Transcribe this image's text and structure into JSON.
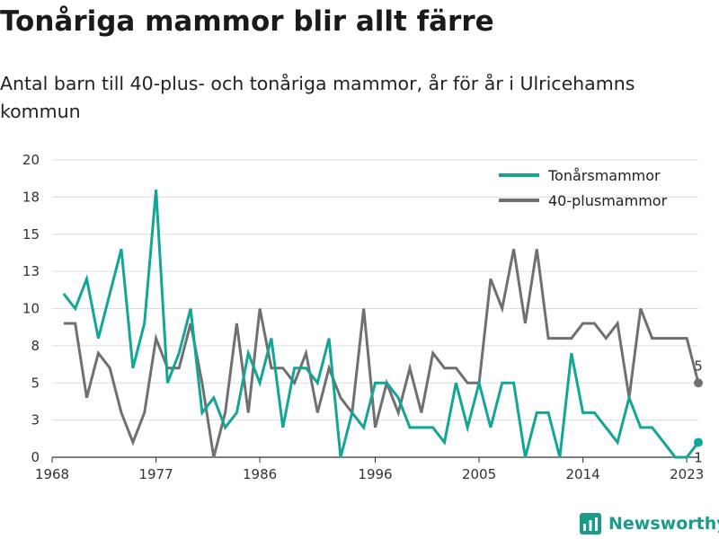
{
  "title": "Tonåriga mammor blir allt färre",
  "subtitle": "Antal barn till 40-plus- och tonåriga mammor, år för år i Ulricehamns kommun",
  "brand": "Newsworthy",
  "colors": {
    "teal": "#13a596",
    "gray": "#707070",
    "grid": "#dddddd",
    "axis": "#333333"
  },
  "chart_data": {
    "type": "line",
    "xlim": [
      1968,
      2024
    ],
    "ylim": [
      0,
      20
    ],
    "x_ticks": [
      1968,
      1977,
      1986,
      1996,
      2005,
      2014,
      2023
    ],
    "y_ticks": [
      0,
      3,
      5,
      8,
      10,
      13,
      15,
      18,
      20
    ],
    "y_tick_values": [
      0,
      2.5,
      5,
      7.5,
      10,
      12.5,
      15,
      17.5,
      20
    ],
    "legend_position": "top-right",
    "grid": true,
    "x": [
      1969,
      1970,
      1971,
      1972,
      1973,
      1974,
      1975,
      1976,
      1977,
      1978,
      1979,
      1980,
      1981,
      1982,
      1983,
      1984,
      1985,
      1986,
      1987,
      1988,
      1989,
      1990,
      1991,
      1992,
      1993,
      1994,
      1995,
      1996,
      1997,
      1998,
      1999,
      2000,
      2001,
      2002,
      2003,
      2004,
      2005,
      2006,
      2007,
      2008,
      2009,
      2010,
      2011,
      2012,
      2013,
      2014,
      2015,
      2016,
      2017,
      2018,
      2019,
      2020,
      2021,
      2022,
      2023,
      2024
    ],
    "series": [
      {
        "name": "Tonårsmammor",
        "color": "#13a596",
        "values": [
          11,
          10,
          12,
          8,
          11,
          14,
          6,
          9,
          18,
          5,
          7,
          10,
          3,
          4,
          2,
          3,
          7,
          5,
          8,
          2,
          6,
          6,
          5,
          8,
          0,
          3,
          2,
          5,
          5,
          4,
          2,
          2,
          2,
          1,
          5,
          2,
          5,
          2,
          5,
          5,
          0,
          3,
          3,
          0,
          7,
          3,
          3,
          2,
          1,
          4,
          2,
          2,
          1,
          0,
          0,
          1
        ],
        "end_label": "1"
      },
      {
        "name": "40-plusmammor",
        "color": "#707070",
        "values": [
          9,
          9,
          4,
          7,
          6,
          3,
          1,
          3,
          8,
          6,
          6,
          9,
          5,
          0,
          3,
          9,
          3,
          10,
          6,
          6,
          5,
          7,
          3,
          6,
          4,
          3,
          10,
          2,
          5,
          3,
          6,
          3,
          7,
          6,
          6,
          5,
          5,
          12,
          10,
          14,
          9,
          14,
          8,
          8,
          8,
          9,
          9,
          8,
          9,
          4,
          10,
          8,
          8,
          8,
          8,
          5
        ],
        "end_label": "5"
      }
    ]
  }
}
